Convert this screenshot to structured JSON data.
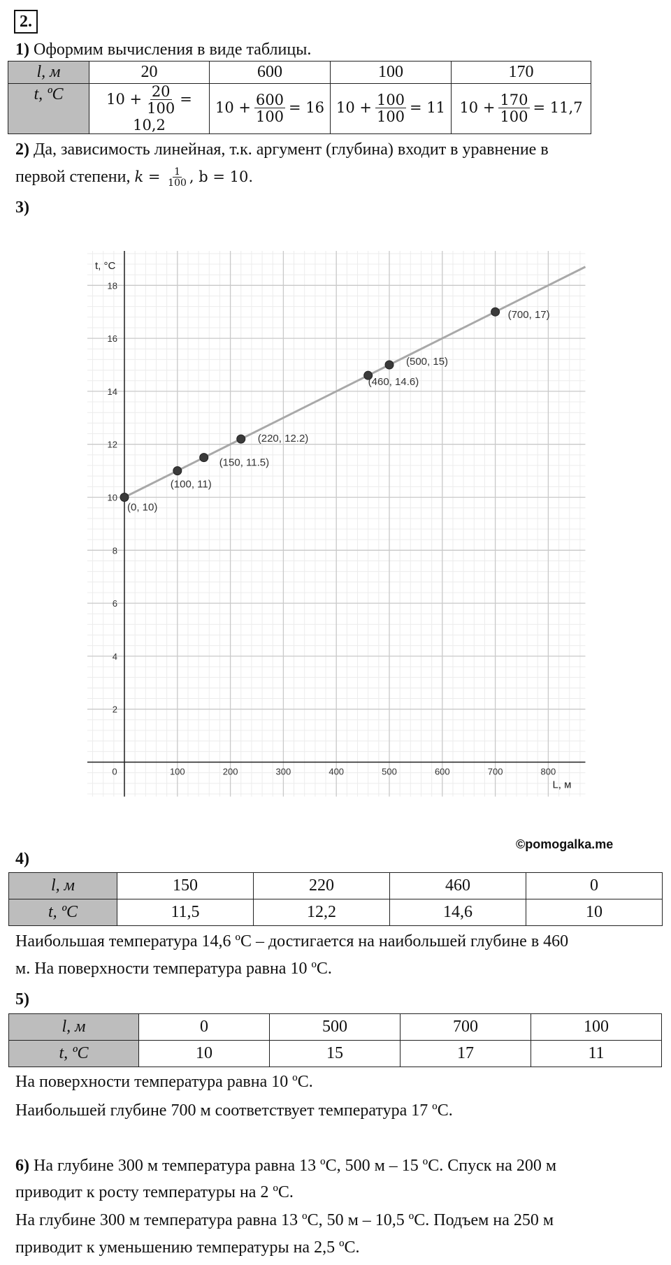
{
  "task_number": "2.",
  "part1": {
    "label": "1)",
    "text": "Оформим вычисления в виде таблицы.",
    "row_l_header": "l, м",
    "row_t_header": "t, ºC",
    "l_values": [
      "20",
      "600",
      "100",
      "170"
    ],
    "t_exprs": [
      {
        "prefix": "10 +",
        "num": "20",
        "den": "100",
        "result": "= 10,2"
      },
      {
        "prefix": "10 +",
        "num": "600",
        "den": "100",
        "result": "= 16"
      },
      {
        "prefix": "10 +",
        "num": "100",
        "den": "100",
        "result": "= 11"
      },
      {
        "prefix": "10 +",
        "num": "170",
        "den": "100",
        "result": "= 11,7"
      }
    ]
  },
  "part2": {
    "label": "2)",
    "line1": "Да, зависимость линейная, т.к. аргумент (глубина) входит в уравнение в",
    "line2_text": "первой степени,",
    "k_var": "k",
    "k_num": "1",
    "k_den": "100",
    "b_text": ", b = 10."
  },
  "part3": {
    "label": "3)"
  },
  "chart_data": {
    "type": "line",
    "xlabel": "L, м",
    "ylabel": "t, °C",
    "xlim": [
      -70,
      870
    ],
    "ylim": [
      -1.3,
      19.3
    ],
    "x_ticks": [
      0,
      100,
      200,
      300,
      400,
      500,
      600,
      700,
      800
    ],
    "y_ticks": [
      2,
      4,
      6,
      8,
      10,
      12,
      14,
      16,
      18
    ],
    "grid": true,
    "line": {
      "slope": 0.01,
      "intercept": 10,
      "x_range": [
        0,
        870
      ],
      "color": "#a8a8a8"
    },
    "points": [
      {
        "x": 0,
        "y": 10,
        "label": "(0, 10)"
      },
      {
        "x": 100,
        "y": 11,
        "label": "(100, 11)"
      },
      {
        "x": 150,
        "y": 11.5,
        "label": "(150, 11.5)"
      },
      {
        "x": 220,
        "y": 12.2,
        "label": "(220, 12.2)"
      },
      {
        "x": 460,
        "y": 14.6,
        "label": "(460, 14.6)"
      },
      {
        "x": 500,
        "y": 15,
        "label": "(500, 15)"
      },
      {
        "x": 700,
        "y": 17,
        "label": "(700, 17)"
      }
    ]
  },
  "copyright": "©pomogalka.me",
  "part4": {
    "label": "4)",
    "row_l_header": "l, м",
    "row_t_header": "t, ºC",
    "l_values": [
      "150",
      "220",
      "460",
      "0"
    ],
    "t_values": [
      "11,5",
      "12,2",
      "14,6",
      "10"
    ],
    "line1": "Наибольшая температура 14,6 ºC – достигается на наибольшей глубине в 460",
    "line2": "м. На поверхности температура равна 10 ºC."
  },
  "part5": {
    "label": "5)",
    "row_l_header": "l, м",
    "row_t_header": "t, ºC",
    "l_values": [
      "0",
      "500",
      "700",
      "100"
    ],
    "t_values": [
      "10",
      "15",
      "17",
      "11"
    ],
    "line1": "На поверхности температура равна 10 ºC.",
    "line2": "Наибольшей глубине 700 м соответствует температура 17 ºC."
  },
  "part6": {
    "label": "6)",
    "line1": "На глубине 300 м температура равна 13 ºC, 500 м  – 15 ºC. Спуск на 200 м",
    "line2": "приводит к росту температуры на 2 ºC.",
    "line3": "На глубине 300 м температура равна 13 ºC, 50 м  – 10,5 ºC. Подъем на 250 м",
    "line4": "приводит к уменьшению температуры на 2,5 ºC."
  }
}
